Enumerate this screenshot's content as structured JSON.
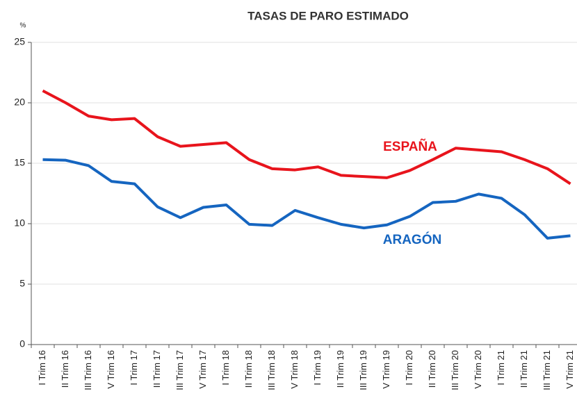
{
  "chart_data": {
    "type": "line",
    "title": "TASAS DE PARO ESTIMADO",
    "y_label": "%",
    "categories": [
      "I Trim 16",
      "II Trim 16",
      "III Trim 16",
      "V Trim 16",
      "I Trim 17",
      "II Trim 17",
      "III Trim 17",
      "V Trim 17",
      "I Trim 18",
      "II Trim 18",
      "III Trim 18",
      "V Trim 18",
      "I Trim 19",
      "II Trim 19",
      "III Trim 19",
      "V Trim 19",
      "I Trim 20",
      "II Trim 20",
      "III Trim 20",
      "V Trim 20",
      "I Trim 21",
      "II Trim 21",
      "III Trim 21",
      "V Trim 21"
    ],
    "series": [
      {
        "name": "ESPAÑA",
        "color": "#e8141c",
        "values": [
          21.0,
          20.0,
          18.9,
          18.6,
          18.7,
          17.2,
          16.4,
          16.55,
          16.7,
          15.3,
          14.55,
          14.45,
          14.7,
          14.0,
          13.9,
          13.8,
          14.4,
          15.3,
          16.25,
          16.1,
          15.95,
          15.3,
          14.55,
          13.3
        ]
      },
      {
        "name": "ARAGÓN",
        "color": "#1565c0",
        "values": [
          15.3,
          15.25,
          14.8,
          13.5,
          13.3,
          11.4,
          10.5,
          11.35,
          11.55,
          9.95,
          9.85,
          11.1,
          10.5,
          9.95,
          9.65,
          9.9,
          10.6,
          11.75,
          11.85,
          12.45,
          12.1,
          10.75,
          8.8,
          9.0
        ]
      }
    ],
    "ylim": [
      0,
      25
    ],
    "yticks": [
      0,
      5,
      10,
      15,
      20,
      25
    ],
    "grid": true
  }
}
